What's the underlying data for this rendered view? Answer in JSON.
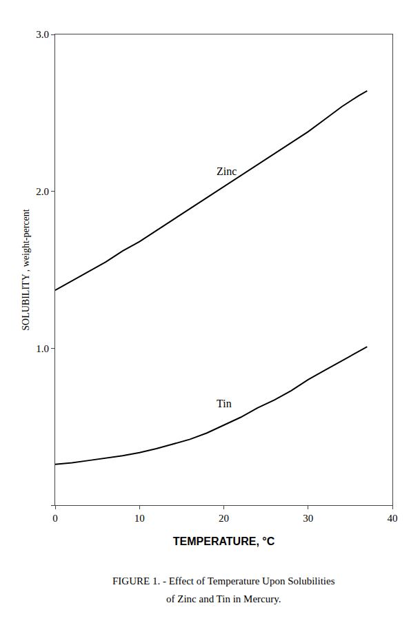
{
  "chart_data": {
    "type": "line",
    "xlabel": "TEMPERATURE, °C",
    "ylabel": "SOLUBILITY , weight-percent",
    "xlim": [
      0,
      40
    ],
    "ylim": [
      0,
      3.0
    ],
    "xticks": [
      0,
      10,
      20,
      30,
      40
    ],
    "yticks": [
      {
        "value": 0,
        "label": ""
      },
      {
        "value": 1.0,
        "label": "1.0"
      },
      {
        "value": 2.0,
        "label": "2.0"
      },
      {
        "value": 3.0,
        "label": "3.0"
      }
    ],
    "grid": false,
    "series": [
      {
        "color": "#000000",
        "x": [
          0,
          1,
          2,
          4,
          6,
          8,
          10,
          12,
          14,
          16,
          18,
          20,
          22,
          24,
          26,
          28,
          30,
          32,
          34,
          36,
          37
        ],
        "values": [
          1.37,
          1.4,
          1.43,
          1.49,
          1.55,
          1.62,
          1.68,
          1.75,
          1.82,
          1.89,
          1.96,
          2.03,
          2.1,
          2.17,
          2.24,
          2.31,
          2.38,
          2.46,
          2.54,
          2.61,
          2.64
        ]
      },
      {
        "color": "#000000",
        "x": [
          0,
          1,
          2,
          4,
          6,
          8,
          10,
          12,
          14,
          16,
          18,
          20,
          22,
          24,
          26,
          28,
          30,
          32,
          34,
          36,
          37
        ],
        "values": [
          0.26,
          0.265,
          0.27,
          0.285,
          0.3,
          0.315,
          0.335,
          0.36,
          0.39,
          0.42,
          0.46,
          0.51,
          0.56,
          0.62,
          0.67,
          0.73,
          0.8,
          0.86,
          0.92,
          0.98,
          1.01
        ]
      }
    ],
    "annotations": [
      {
        "text": "Zinc",
        "x": 19,
        "y": 2.08
      },
      {
        "text": "Tin",
        "x": 19,
        "y": 0.6
      },
      {
        "text": "FIGURE 1. - Effect of Temperature Upon Solubilities"
      },
      {
        "text": "of Zinc and Tin in Mercury."
      }
    ]
  }
}
